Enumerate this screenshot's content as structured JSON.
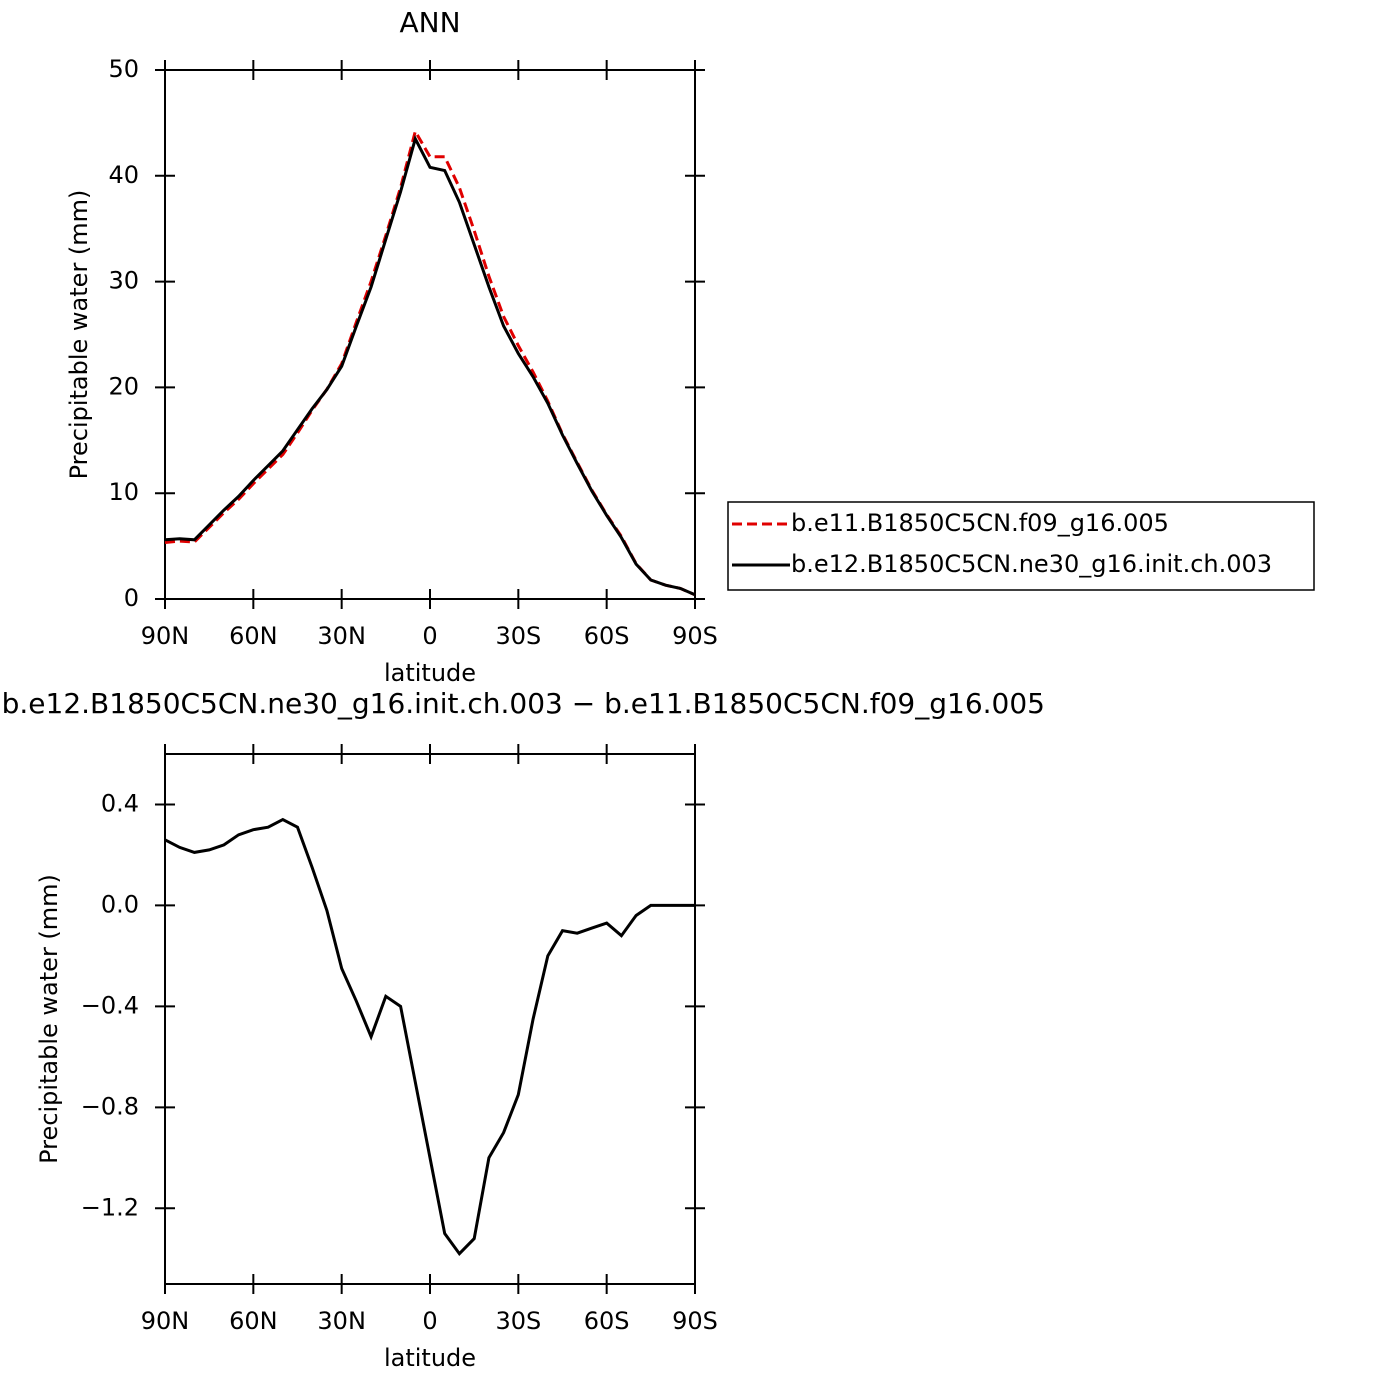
{
  "chart_data": [
    {
      "type": "line",
      "title": "ANN",
      "xlabel": "latitude",
      "ylabel": "Precipitable water (mm)",
      "x": [
        90,
        85,
        80,
        75,
        70,
        65,
        60,
        55,
        50,
        45,
        40,
        35,
        30,
        25,
        20,
        15,
        10,
        5,
        0,
        -5,
        -10,
        -15,
        -20,
        -25,
        -30,
        -35,
        -40,
        -45,
        -50,
        -55,
        -60,
        -65,
        -70,
        -75,
        -80,
        -85,
        -90
      ],
      "series": [
        {
          "name": "b.e11.B1850C5CN.f09_g16.005",
          "color": "#e00000",
          "dashed": true,
          "values": [
            5.34,
            5.47,
            5.39,
            6.78,
            8.16,
            9.42,
            10.9,
            12.29,
            13.66,
            15.69,
            17.85,
            19.82,
            22.25,
            26.18,
            30.02,
            34.36,
            38.9,
            44.2,
            41.8,
            41.8,
            38.88,
            34.82,
            30.5,
            26.7,
            23.95,
            21.45,
            18.7,
            15.6,
            12.91,
            10.29,
            7.97,
            5.92,
            3.34,
            1.8,
            1.3,
            1.0,
            0.4
          ]
        },
        {
          "name": "b.e12.B1850C5CN.ne30_g16.init.ch.003",
          "color": "#000000",
          "dashed": false,
          "values": [
            5.6,
            5.7,
            5.6,
            7.0,
            8.4,
            9.7,
            11.2,
            12.6,
            14.0,
            16.0,
            18.0,
            19.8,
            22.0,
            25.8,
            29.5,
            34.0,
            38.5,
            43.5,
            40.8,
            40.5,
            37.5,
            33.5,
            29.5,
            25.8,
            23.2,
            21.0,
            18.5,
            15.5,
            12.8,
            10.2,
            7.9,
            5.8,
            3.3,
            1.8,
            1.3,
            1.0,
            0.4
          ]
        }
      ],
      "xlim": [
        90,
        -90
      ],
      "xticks": [
        {
          "value": 90,
          "label": "90N"
        },
        {
          "value": 60,
          "label": "60N"
        },
        {
          "value": 30,
          "label": "30N"
        },
        0,
        {
          "value": -30,
          "label": "30S"
        },
        {
          "value": -60,
          "label": "60S"
        },
        {
          "value": -90,
          "label": "90S"
        }
      ],
      "ylim": [
        0,
        50
      ],
      "yticks": [
        0,
        10,
        20,
        30,
        40,
        50
      ],
      "legend": "right"
    },
    {
      "type": "line",
      "title": "b.e12.B1850C5CN.ne30_g16.init.ch.003 − b.e11.B1850C5CN.f09_g16.005",
      "xlabel": "latitude",
      "ylabel": "Precipitable water (mm)",
      "x": [
        90,
        85,
        80,
        75,
        70,
        65,
        60,
        55,
        50,
        45,
        40,
        35,
        30,
        25,
        20,
        15,
        10,
        5,
        0,
        -5,
        -10,
        -15,
        -20,
        -25,
        -30,
        -35,
        -40,
        -45,
        -50,
        -55,
        -60,
        -65,
        -70,
        -75,
        -80,
        -85,
        -90
      ],
      "series": [
        {
          "color": "#000000",
          "dashed": false,
          "values": [
            0.26,
            0.23,
            0.21,
            0.22,
            0.24,
            0.28,
            0.3,
            0.31,
            0.34,
            0.31,
            0.15,
            -0.02,
            -0.25,
            -0.38,
            -0.52,
            -0.36,
            -0.4,
            -0.7,
            -1.0,
            -1.3,
            -1.38,
            -1.32,
            -1.0,
            -0.9,
            -0.75,
            -0.45,
            -0.2,
            -0.1,
            -0.11,
            -0.09,
            -0.07,
            -0.12,
            -0.04,
            0.0,
            0.0,
            0.0,
            0.0
          ]
        }
      ],
      "xlim": [
        90,
        -90
      ],
      "xticks": [
        {
          "value": 90,
          "label": "90N"
        },
        {
          "value": 60,
          "label": "60N"
        },
        {
          "value": 30,
          "label": "30N"
        },
        0,
        {
          "value": -30,
          "label": "30S"
        },
        {
          "value": -60,
          "label": "60S"
        },
        {
          "value": -90,
          "label": "90S"
        }
      ],
      "ylim": [
        -1.5,
        0.6
      ],
      "yticks": [
        {
          "value": 0.4,
          "label": "0.4"
        },
        {
          "value": 0,
          "label": "0.0"
        },
        {
          "value": -0.4,
          "label": "−0.4"
        },
        {
          "value": -0.8,
          "label": "−0.8"
        },
        {
          "value": -1.2,
          "label": "−1.2"
        }
      ]
    }
  ]
}
